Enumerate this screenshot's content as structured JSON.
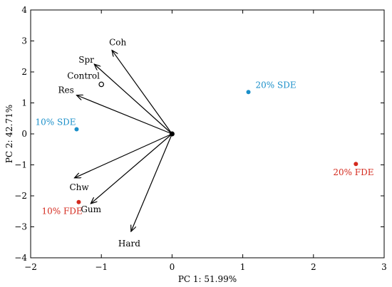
{
  "chart_data": {
    "type": "scatter",
    "subtype": "pca-biplot",
    "title": "",
    "xlabel": "PC 1: 51.99%",
    "ylabel": "PC 2: 42.71%",
    "xlim": [
      -2,
      3
    ],
    "ylim": [
      -4,
      4
    ],
    "xticks": [
      "−2",
      "−1",
      "0",
      "1",
      "2",
      "3"
    ],
    "yticks": [
      "4",
      "3",
      "2",
      "1",
      "0",
      "−1",
      "−2",
      "−3",
      "−4"
    ],
    "grid": false,
    "origin": [
      0,
      0
    ],
    "loadings": [
      {
        "name": "Coh",
        "x": -0.85,
        "y": 2.7
      },
      {
        "name": "Spr",
        "x": -1.1,
        "y": 2.25
      },
      {
        "name": "Res",
        "x": -1.35,
        "y": 1.25
      },
      {
        "name": "Chw",
        "x": -1.38,
        "y": -1.42
      },
      {
        "name": "Gum",
        "x": -1.15,
        "y": -2.25
      },
      {
        "name": "Hard",
        "x": -0.58,
        "y": -3.15
      }
    ],
    "samples": [
      {
        "name": "Control",
        "x": -1.0,
        "y": 1.6,
        "color": "#000000",
        "marker": "open-circle"
      },
      {
        "name": "10% SDE",
        "x": -1.35,
        "y": 0.15,
        "color": "#1a8fc9",
        "marker": "filled-circle"
      },
      {
        "name": "20% SDE",
        "x": 1.08,
        "y": 1.35,
        "color": "#1a8fc9",
        "marker": "filled-circle"
      },
      {
        "name": "10% FDE",
        "x": -1.32,
        "y": -2.2,
        "color": "#d42a1e",
        "marker": "filled-circle"
      },
      {
        "name": "20% FDE",
        "x": 2.6,
        "y": -0.97,
        "color": "#d42a1e",
        "marker": "filled-circle"
      }
    ]
  }
}
